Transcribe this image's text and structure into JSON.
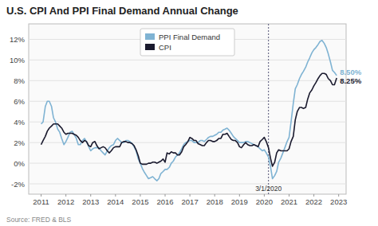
{
  "chart_data": {
    "type": "line",
    "title": "U.S. CPI And PPI Final Demand Annual Change",
    "source": "Source: FRED & BLS",
    "x": [
      2011.0,
      2011.08,
      2011.17,
      2011.25,
      2011.33,
      2011.42,
      2011.5,
      2011.58,
      2011.67,
      2011.75,
      2011.83,
      2011.92,
      2012.0,
      2012.08,
      2012.17,
      2012.25,
      2012.33,
      2012.42,
      2012.5,
      2012.58,
      2012.67,
      2012.75,
      2012.83,
      2012.92,
      2013.0,
      2013.08,
      2013.17,
      2013.25,
      2013.33,
      2013.42,
      2013.5,
      2013.58,
      2013.67,
      2013.75,
      2013.83,
      2013.92,
      2014.0,
      2014.08,
      2014.17,
      2014.25,
      2014.33,
      2014.42,
      2014.5,
      2014.58,
      2014.67,
      2014.75,
      2014.83,
      2014.92,
      2015.0,
      2015.08,
      2015.17,
      2015.25,
      2015.33,
      2015.42,
      2015.5,
      2015.58,
      2015.67,
      2015.75,
      2015.83,
      2015.92,
      2016.0,
      2016.08,
      2016.17,
      2016.25,
      2016.33,
      2016.42,
      2016.5,
      2016.58,
      2016.67,
      2016.75,
      2016.83,
      2016.92,
      2017.0,
      2017.08,
      2017.17,
      2017.25,
      2017.33,
      2017.42,
      2017.5,
      2017.58,
      2017.67,
      2017.75,
      2017.83,
      2017.92,
      2018.0,
      2018.08,
      2018.17,
      2018.25,
      2018.33,
      2018.42,
      2018.5,
      2018.58,
      2018.67,
      2018.75,
      2018.83,
      2018.92,
      2019.0,
      2019.08,
      2019.17,
      2019.25,
      2019.33,
      2019.42,
      2019.5,
      2019.58,
      2019.67,
      2019.75,
      2019.83,
      2019.92,
      2020.0,
      2020.08,
      2020.17,
      2020.25,
      2020.33,
      2020.42,
      2020.5,
      2020.58,
      2020.67,
      2020.75,
      2020.83,
      2020.92,
      2021.0,
      2021.08,
      2021.17,
      2021.25,
      2021.33,
      2021.42,
      2021.5,
      2021.58,
      2021.67,
      2021.75,
      2021.83,
      2021.92,
      2022.0,
      2022.08,
      2022.17,
      2022.25,
      2022.33,
      2022.42,
      2022.5,
      2022.58,
      2022.67,
      2022.75,
      2022.83,
      2022.92
    ],
    "series": [
      {
        "name": "PPI Final Demand",
        "color": "#7fb3d3",
        "values": [
          0.038,
          0.04,
          0.055,
          0.06,
          0.06,
          0.055,
          0.044,
          0.04,
          0.033,
          0.03,
          0.024,
          0.018,
          0.021,
          0.025,
          0.03,
          0.031,
          0.028,
          0.024,
          0.018,
          0.018,
          0.022,
          0.024,
          0.021,
          0.016,
          0.012,
          0.014,
          0.015,
          0.015,
          0.015,
          0.012,
          0.01,
          0.008,
          0.012,
          0.015,
          0.017,
          0.018,
          0.022,
          0.024,
          0.022,
          0.02,
          0.02,
          0.022,
          0.022,
          0.021,
          0.019,
          0.016,
          0.012,
          0.004,
          0.0,
          -0.005,
          -0.009,
          -0.012,
          -0.015,
          -0.014,
          -0.013,
          -0.015,
          -0.017,
          -0.015,
          -0.01,
          -0.008,
          -0.006,
          -0.006,
          -0.004,
          0.0,
          0.002,
          0.006,
          0.008,
          0.01,
          0.014,
          0.018,
          0.02,
          0.021,
          0.022,
          0.022,
          0.02,
          0.02,
          0.02,
          0.022,
          0.022,
          0.021,
          0.023,
          0.025,
          0.026,
          0.026,
          0.027,
          0.028,
          0.03,
          0.03,
          0.032,
          0.033,
          0.034,
          0.032,
          0.029,
          0.026,
          0.024,
          0.022,
          0.02,
          0.02,
          0.02,
          0.021,
          0.021,
          0.02,
          0.019,
          0.018,
          0.017,
          0.016,
          0.014,
          0.012,
          0.013,
          0.01,
          0.006,
          -0.003,
          -0.015,
          -0.012,
          -0.008,
          0.001,
          0.005,
          0.01,
          0.015,
          0.021,
          0.025,
          0.04,
          0.058,
          0.072,
          0.076,
          0.082,
          0.086,
          0.089,
          0.093,
          0.098,
          0.102,
          0.107,
          0.11,
          0.112,
          0.115,
          0.118,
          0.119,
          0.116,
          0.112,
          0.106,
          0.098,
          0.09,
          0.088,
          0.085
        ]
      },
      {
        "name": "CPI",
        "color": "#1a1a2e",
        "values": [
          0.018,
          0.022,
          0.026,
          0.031,
          0.034,
          0.036,
          0.038,
          0.038,
          0.038,
          0.036,
          0.034,
          0.03,
          0.028,
          0.029,
          0.029,
          0.029,
          0.028,
          0.027,
          0.025,
          0.022,
          0.02,
          0.022,
          0.021,
          0.017,
          0.016,
          0.02,
          0.021,
          0.017,
          0.014,
          0.015,
          0.016,
          0.015,
          0.012,
          0.01,
          0.012,
          0.015,
          0.016,
          0.016,
          0.016,
          0.02,
          0.021,
          0.021,
          0.02,
          0.02,
          0.019,
          0.017,
          0.013,
          0.007,
          0.0,
          -0.001,
          -0.001,
          -0.001,
          0.0,
          0.0,
          0.001,
          0.001,
          0.0,
          0.001,
          0.002,
          0.004,
          0.001,
          0.01,
          0.009,
          0.011,
          0.01,
          0.01,
          0.008,
          0.008,
          0.011,
          0.016,
          0.018,
          0.021,
          0.025,
          0.024,
          0.022,
          0.022,
          0.019,
          0.018,
          0.017,
          0.017,
          0.02,
          0.022,
          0.022,
          0.021,
          0.021,
          0.022,
          0.024,
          0.024,
          0.028,
          0.028,
          0.029,
          0.026,
          0.023,
          0.022,
          0.022,
          0.02,
          0.016,
          0.015,
          0.018,
          0.02,
          0.018,
          0.017,
          0.017,
          0.018,
          0.017,
          0.016,
          0.021,
          0.023,
          0.025,
          0.021,
          0.015,
          0.005,
          -0.003,
          0.001,
          0.01,
          0.013,
          0.012,
          0.012,
          0.012,
          0.012,
          0.014,
          0.021,
          0.026,
          0.042,
          0.05,
          0.054,
          0.054,
          0.053,
          0.054,
          0.062,
          0.068,
          0.071,
          0.075,
          0.078,
          0.082,
          0.085,
          0.087,
          0.087,
          0.086,
          0.082,
          0.08,
          0.076,
          0.076,
          0.0825
        ]
      }
    ],
    "annotations": [
      {
        "text": "3/1/2020",
        "x": 2020.17
      },
      {
        "text": "8.50%",
        "x": 2022.92,
        "y": 0.085
      },
      {
        "text": "8.25%",
        "x": 2022.92,
        "y": 0.0825
      }
    ],
    "xlim": [
      2010.5,
      2023.3
    ],
    "xticks": [
      2011,
      2012,
      2013,
      2014,
      2015,
      2016,
      2017,
      2018,
      2019,
      2020,
      2021,
      2022,
      2023
    ],
    "ylim": [
      -0.03,
      0.135
    ],
    "yticks": [
      {
        "value": -0.02,
        "label": "-2%"
      },
      {
        "value": 0.0,
        "label": "0%"
      },
      {
        "value": 0.02,
        "label": "2%"
      },
      {
        "value": 0.04,
        "label": "4%"
      },
      {
        "value": 0.06,
        "label": "6%"
      },
      {
        "value": 0.08,
        "label": "8%"
      },
      {
        "value": 0.1,
        "label": "10%"
      },
      {
        "value": 0.12,
        "label": "12%"
      }
    ],
    "grid": true,
    "legend": "upper center"
  }
}
